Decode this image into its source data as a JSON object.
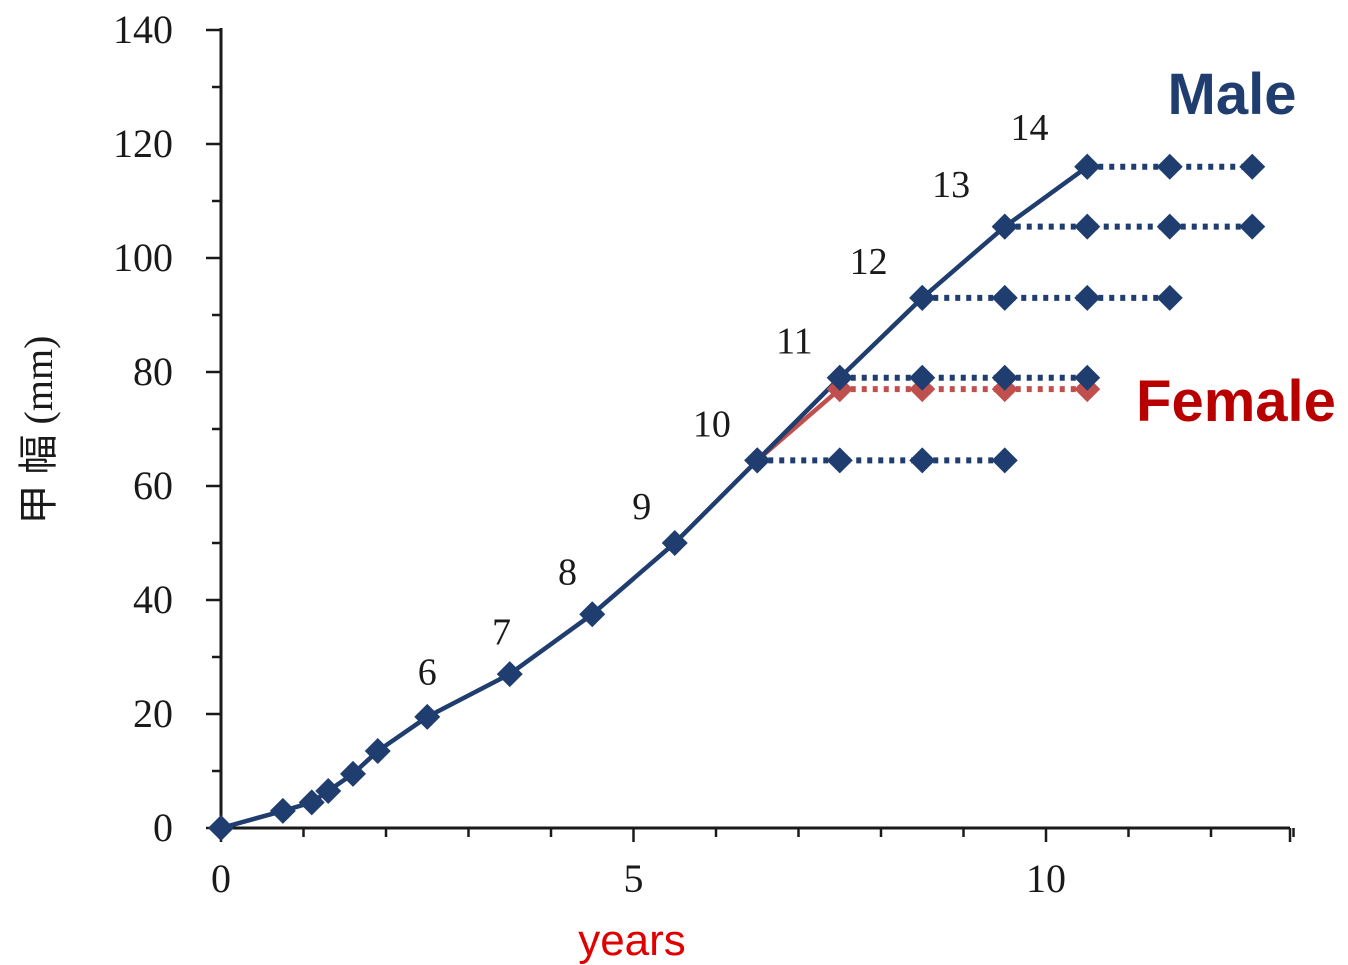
{
  "chart_data": {
    "type": "line",
    "title": "",
    "xlabel": "years",
    "ylabel": "甲 幅 (mm)",
    "xlim": [
      0,
      13
    ],
    "ylim": [
      0,
      140
    ],
    "x_ticks": [
      "0",
      "5",
      "10"
    ],
    "x_tick_values": [
      0,
      5,
      10
    ],
    "y_ticks": [
      "0",
      "20",
      "40",
      "60",
      "80",
      "100",
      "120",
      "140"
    ],
    "y_tick_values": [
      0,
      20,
      40,
      60,
      80,
      100,
      120,
      140
    ],
    "x_minor_step": 1,
    "y_minor_step": 10,
    "grid": false,
    "colors": {
      "male": "#1f3d6e",
      "female": "#c0504d",
      "female_label": "#b80000",
      "xlabel": "#e00000",
      "axis": "#1a1a1a"
    },
    "series": [
      {
        "name": "Male",
        "x": [
          0,
          0.75,
          1.1,
          1.3,
          1.6,
          1.9,
          2.5,
          3.5,
          4.5,
          5.5,
          6.5,
          7.5,
          8.5,
          9.5,
          10.5
        ],
        "y": [
          0,
          3,
          4.5,
          6.5,
          9.5,
          13.5,
          19.5,
          27,
          37.5,
          50,
          64.5,
          79,
          93,
          105.5,
          116
        ]
      },
      {
        "name": "Female",
        "x": [
          6.5,
          7.5
        ],
        "y": [
          64.5,
          77
        ]
      }
    ],
    "plateaus": [
      {
        "series": "Female",
        "y": 77,
        "x": [
          7.5,
          8.5,
          9.5,
          10.5
        ]
      },
      {
        "series": "Male",
        "y": 64.5,
        "x": [
          6.5,
          7.5,
          8.5,
          9.5
        ]
      },
      {
        "series": "Male",
        "y": 79,
        "x": [
          7.5,
          8.5,
          9.5,
          10.5
        ]
      },
      {
        "series": "Male",
        "y": 93,
        "x": [
          8.5,
          9.5,
          10.5,
          11.5
        ]
      },
      {
        "series": "Male",
        "y": 105.5,
        "x": [
          9.5,
          10.5,
          11.5,
          12.5
        ]
      },
      {
        "series": "Male",
        "y": 116,
        "x": [
          10.5,
          11.5,
          12.5
        ]
      }
    ],
    "annotations": [
      {
        "text": "6",
        "x": 2.5,
        "y": 27.5
      },
      {
        "text": "7",
        "x": 3.4,
        "y": 34.5
      },
      {
        "text": "8",
        "x": 4.2,
        "y": 45
      },
      {
        "text": "9",
        "x": 5.1,
        "y": 56.5
      },
      {
        "text": "10",
        "x": 5.95,
        "y": 71
      },
      {
        "text": "11",
        "x": 6.95,
        "y": 85.5
      },
      {
        "text": "12",
        "x": 7.85,
        "y": 99.5
      },
      {
        "text": "13",
        "x": 8.85,
        "y": 113
      },
      {
        "text": "14",
        "x": 9.8,
        "y": 123
      }
    ],
    "legend": [
      {
        "text": "Male",
        "color": "#1f3d6e",
        "placement": "top-right"
      },
      {
        "text": "Female",
        "color": "#b80000",
        "placement": "right"
      }
    ]
  }
}
